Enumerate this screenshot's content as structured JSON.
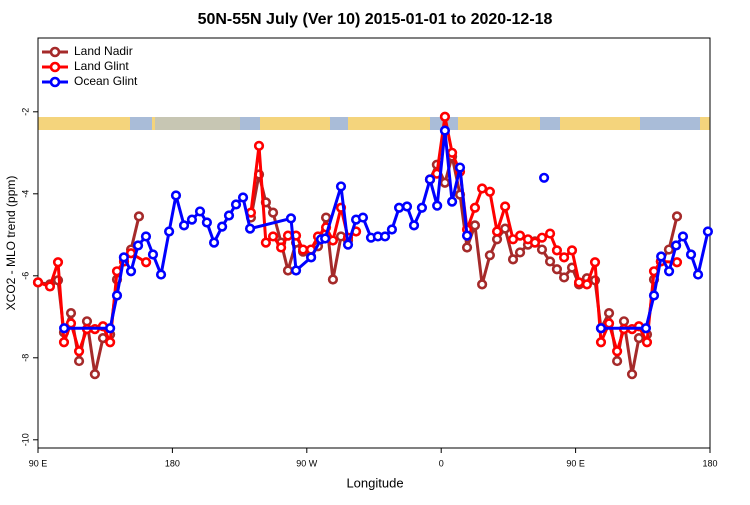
{
  "chart_data": {
    "type": "line",
    "title": "50N-55N July (Ver 10)   2015-01-01 to 2020-12-18",
    "x_label": "Longitude",
    "y_label": "XCO2 - MLO trend (ppm)",
    "xlim": [
      90,
      540
    ],
    "ylim": [
      -10.2,
      -0.2
    ],
    "xticks": [
      {
        "value": 90,
        "label": "90 E"
      },
      180,
      {
        "value": 270,
        "label": "90 W"
      },
      {
        "value": 360,
        "label": "0"
      },
      {
        "value": 450,
        "label": "90 E"
      },
      {
        "value": 540,
        "label": "180"
      }
    ],
    "yticks": [
      -2,
      -4,
      -6,
      -8,
      -10
    ],
    "legend": "top-left",
    "series": [
      {
        "name": "Land Nadir",
        "color": "#a52a2a",
        "x": [
          90,
          98,
          103.4,
          107.4,
          112.1,
          117.5,
          122.8,
          128.1,
          133.5,
          138.3,
          142.9,
          147.6,
          152.3,
          157.6,
          200,
          232.6,
          238,
          242.6,
          247.4,
          252.8,
          257.4,
          262.8,
          267.5,
          272.8,
          277.5,
          282.9,
          287.5,
          292.9,
          297.6,
          330,
          352.5,
          357.1,
          362.5,
          367.3,
          372.6,
          377.3,
          382.6,
          387.4,
          392.6,
          397.4,
          402.8,
          408.1,
          412.8,
          418.1,
          422.8,
          427.5,
          432.9,
          437.5,
          442.3,
          447.6,
          452.3,
          457.6,
          463,
          467,
          472.4,
          477.8,
          482.4,
          487.8,
          492.4,
          497.8,
          502.5,
          507.1,
          512.5,
          517.9
        ],
        "values": [
          -6.16,
          -6.21,
          -6.11,
          -7.38,
          -6.91,
          -8.08,
          -7.11,
          -8.4,
          -7.52,
          -7.43,
          -6.09,
          -5.65,
          -5.36,
          -4.55,
          null,
          -4.58,
          -3.53,
          -4.21,
          -4.46,
          -5.19,
          -5.87,
          -5.19,
          -5.41,
          -5.53,
          -5.28,
          -4.58,
          -6.09,
          -5.04,
          -5.14,
          null,
          -3.65,
          -3.29,
          -3.73,
          -3.09,
          -4.02,
          -5.31,
          -4.77,
          -6.21,
          -5.5,
          -5.11,
          -4.85,
          -5.6,
          -5.43,
          -5.24,
          -5.16,
          -5.36,
          -5.65,
          -5.84,
          -6.04,
          -5.8,
          -6.21,
          -6.06,
          -6.11,
          -7.28,
          -6.91,
          -8.08,
          -7.11,
          -8.4,
          -7.52,
          -7.43,
          -6.09,
          -5.65,
          -5.36,
          -4.55
        ]
      },
      {
        "name": "Land Glint",
        "color": "#ff0000",
        "x": [
          90,
          98,
          103.4,
          107.4,
          112.1,
          117.5,
          122.8,
          128.1,
          133.5,
          138.3,
          142.9,
          147.6,
          152.3,
          162.4,
          200,
          232.6,
          238,
          242.6,
          247.4,
          252.8,
          257.4,
          262.8,
          267.5,
          272.8,
          277.5,
          282.9,
          287.5,
          292.9,
          297.6,
          303,
          330,
          352.5,
          357.1,
          362.5,
          367.3,
          372.6,
          377.3,
          382.6,
          387.4,
          392.6,
          397.4,
          402.8,
          408.1,
          412.8,
          418.1,
          422.8,
          427.5,
          432.9,
          437.5,
          442.3,
          447.6,
          452.3,
          457.6,
          463,
          467,
          472.4,
          477.8,
          482.4,
          487.8,
          492.4,
          497.8,
          502.5,
          507.1,
          517.9
        ],
        "values": [
          -6.16,
          -6.26,
          -5.67,
          -7.62,
          -7.16,
          -7.84,
          -7.3,
          -7.3,
          -7.23,
          -7.62,
          -5.89,
          -5.65,
          -5.45,
          -5.67,
          null,
          -4.46,
          -2.83,
          -5.19,
          -5.04,
          -5.31,
          -5.02,
          -5.02,
          -5.36,
          -5.36,
          -5.04,
          -4.82,
          -5.14,
          -4.34,
          -5.07,
          -4.92,
          null,
          -3.65,
          -3.51,
          -2.12,
          -3.0,
          -3.46,
          -4.87,
          -4.34,
          -3.87,
          -3.95,
          -4.92,
          -4.31,
          -5.11,
          -5.02,
          -5.11,
          -5.19,
          -5.07,
          -4.97,
          -5.38,
          -5.55,
          -5.38,
          -6.16,
          -6.21,
          -5.67,
          -7.62,
          -7.16,
          -7.84,
          -7.3,
          -7.3,
          -7.23,
          -7.62,
          -5.89,
          -5.65,
          -5.67
        ]
      },
      {
        "name": "Ocean Glint",
        "color": "#0000ff",
        "x": [
          107.5,
          138.3,
          142.9,
          147.5,
          152.3,
          157,
          162.3,
          167,
          172.4,
          177.8,
          182.4,
          187.8,
          193.1,
          198.5,
          203.1,
          207.9,
          213.3,
          217.9,
          222.6,
          227.3,
          232,
          259.4,
          262.8,
          272.9,
          279.5,
          282.3,
          292.9,
          297.6,
          303,
          307.6,
          313,
          317.6,
          322.4,
          327,
          331.8,
          337.1,
          341.8,
          347.1,
          352.5,
          357.3,
          362.5,
          367.3,
          372.6,
          377.3,
          400,
          428.9,
          450,
          467,
          497.1,
          502.5,
          507.3,
          512.6,
          517.3,
          521.9,
          527.3,
          532,
          538.6
        ],
        "values": [
          -7.28,
          -7.28,
          -6.48,
          -5.55,
          -5.89,
          -5.26,
          -5.04,
          -5.48,
          -5.97,
          -4.92,
          -4.04,
          -4.77,
          -4.63,
          -4.43,
          -4.7,
          -5.19,
          -4.8,
          -4.53,
          -4.26,
          -4.09,
          -4.85,
          -4.6,
          -5.87,
          -5.55,
          -5.11,
          -5.09,
          -3.82,
          -5.24,
          -4.63,
          -4.58,
          -5.07,
          -5.04,
          -5.04,
          -4.87,
          -4.34,
          -4.31,
          -4.77,
          -4.34,
          -3.65,
          -4.29,
          -2.46,
          -4.19,
          -3.36,
          -5.02,
          null,
          -3.61,
          null,
          -7.28,
          -7.28,
          -6.48,
          -5.53,
          -5.89,
          -5.26,
          -5.04,
          -5.48,
          -5.97,
          -4.92
        ]
      }
    ]
  }
}
